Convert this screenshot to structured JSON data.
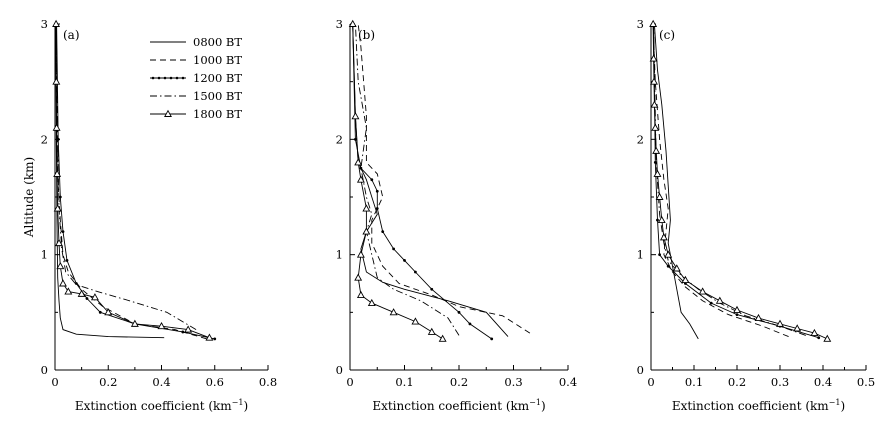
{
  "figure": {
    "ylabel": "Altitude (km)",
    "xlabel": "Extinction coefficient (km",
    "xlabel_sup": "−1",
    "xlabel_close": ")"
  },
  "legend": {
    "entries": [
      {
        "label": "0800 BT",
        "style": "solid"
      },
      {
        "label": "1000 BT",
        "style": "dashed"
      },
      {
        "label": "1200 BT",
        "style": "dotted-line"
      },
      {
        "label": "1500 BT",
        "style": "dash-dot"
      },
      {
        "label": "1800 BT",
        "style": "triangle"
      }
    ]
  },
  "chart_data": [
    {
      "type": "line",
      "panel": "(a)",
      "xlabel": "Extinction coefficient (km−1)",
      "ylabel": "Altitude (km)",
      "xlim": [
        0,
        0.8
      ],
      "ylim": [
        0,
        3
      ],
      "xticks": [
        "0",
        "0.2",
        "0.4",
        "0.6",
        "0.8"
      ],
      "yticks": [
        "0",
        "1",
        "2",
        "3"
      ],
      "series": [
        {
          "name": "0800 BT",
          "points": [
            [
              0.41,
              0.28
            ],
            [
              0.2,
              0.29
            ],
            [
              0.08,
              0.31
            ],
            [
              0.03,
              0.35
            ],
            [
              0.02,
              0.45
            ],
            [
              0.015,
              0.6
            ],
            [
              0.01,
              0.8
            ],
            [
              0.008,
              1.2
            ],
            [
              0.005,
              2.0
            ],
            [
              0.003,
              3.0
            ]
          ]
        },
        {
          "name": "1000 BT",
          "points": [
            [
              0.57,
              0.27
            ],
            [
              0.45,
              0.35
            ],
            [
              0.3,
              0.4
            ],
            [
              0.18,
              0.55
            ],
            [
              0.1,
              0.7
            ],
            [
              0.05,
              0.85
            ],
            [
              0.03,
              1.0
            ],
            [
              0.02,
              1.3
            ],
            [
              0.012,
              1.6
            ],
            [
              0.008,
              2.2
            ],
            [
              0.005,
              3.0
            ]
          ]
        },
        {
          "name": "1200 BT",
          "points": [
            [
              0.6,
              0.27
            ],
            [
              0.48,
              0.33
            ],
            [
              0.3,
              0.4
            ],
            [
              0.17,
              0.5
            ],
            [
              0.12,
              0.62
            ],
            [
              0.08,
              0.75
            ],
            [
              0.045,
              0.95
            ],
            [
              0.03,
              1.2
            ],
            [
              0.02,
              1.5
            ],
            [
              0.012,
              2.0
            ],
            [
              0.006,
              3.0
            ]
          ]
        },
        {
          "name": "1500 BT",
          "points": [
            [
              0.53,
              0.35
            ],
            [
              0.42,
              0.5
            ],
            [
              0.28,
              0.6
            ],
            [
              0.16,
              0.68
            ],
            [
              0.08,
              0.74
            ],
            [
              0.04,
              0.85
            ],
            [
              0.025,
              1.05
            ],
            [
              0.015,
              1.4
            ],
            [
              0.01,
              2.0
            ],
            [
              0.005,
              3.0
            ]
          ]
        },
        {
          "name": "1800 BT",
          "points": [
            [
              0.58,
              0.28
            ],
            [
              0.5,
              0.35
            ],
            [
              0.4,
              0.38
            ],
            [
              0.3,
              0.4
            ],
            [
              0.2,
              0.5
            ],
            [
              0.15,
              0.63
            ],
            [
              0.1,
              0.66
            ],
            [
              0.05,
              0.68
            ],
            [
              0.03,
              0.75
            ],
            [
              0.02,
              0.9
            ],
            [
              0.015,
              1.1
            ],
            [
              0.01,
              1.4
            ],
            [
              0.008,
              1.7
            ],
            [
              0.006,
              2.1
            ],
            [
              0.005,
              2.5
            ],
            [
              0.004,
              3.0
            ]
          ]
        }
      ]
    },
    {
      "type": "line",
      "panel": "(b)",
      "xlabel": "Extinction coefficient (km−1)",
      "xlim": [
        0,
        0.4
      ],
      "ylim": [
        0,
        3
      ],
      "xticks": [
        "0",
        "0.1",
        "0.2",
        "0.3",
        "0.4"
      ],
      "yticks": [
        "0",
        "1",
        "2",
        "3"
      ],
      "series": [
        {
          "name": "0800 BT",
          "points": [
            [
              0.29,
              0.29
            ],
            [
              0.25,
              0.5
            ],
            [
              0.18,
              0.6
            ],
            [
              0.1,
              0.7
            ],
            [
              0.06,
              0.76
            ],
            [
              0.03,
              0.85
            ],
            [
              0.02,
              1.05
            ],
            [
              0.03,
              1.2
            ],
            [
              0.05,
              1.35
            ],
            [
              0.04,
              1.5
            ],
            [
              0.03,
              1.65
            ],
            [
              0.015,
              1.8
            ],
            [
              0.01,
              2.2
            ],
            [
              0.005,
              3.0
            ]
          ]
        },
        {
          "name": "1000 BT",
          "points": [
            [
              0.33,
              0.32
            ],
            [
              0.28,
              0.47
            ],
            [
              0.2,
              0.55
            ],
            [
              0.15,
              0.65
            ],
            [
              0.09,
              0.75
            ],
            [
              0.06,
              0.9
            ],
            [
              0.04,
              1.1
            ],
            [
              0.04,
              1.3
            ],
            [
              0.06,
              1.5
            ],
            [
              0.05,
              1.7
            ],
            [
              0.03,
              1.8
            ],
            [
              0.03,
              2.2
            ],
            [
              0.02,
              2.8
            ],
            [
              0.015,
              3.0
            ]
          ]
        },
        {
          "name": "1200 BT",
          "points": [
            [
              0.26,
              0.27
            ],
            [
              0.22,
              0.4
            ],
            [
              0.2,
              0.5
            ],
            [
              0.15,
              0.7
            ],
            [
              0.12,
              0.85
            ],
            [
              0.1,
              0.95
            ],
            [
              0.08,
              1.05
            ],
            [
              0.06,
              1.2
            ],
            [
              0.05,
              1.4
            ],
            [
              0.05,
              1.55
            ],
            [
              0.04,
              1.65
            ],
            [
              0.02,
              1.75
            ],
            [
              0.01,
              2.0
            ],
            [
              0.005,
              3.0
            ]
          ]
        },
        {
          "name": "1500 BT",
          "points": [
            [
              0.2,
              0.3
            ],
            [
              0.18,
              0.45
            ],
            [
              0.13,
              0.6
            ],
            [
              0.08,
              0.7
            ],
            [
              0.05,
              0.8
            ],
            [
              0.04,
              1.0
            ],
            [
              0.03,
              1.2
            ],
            [
              0.04,
              1.35
            ],
            [
              0.03,
              1.5
            ],
            [
              0.02,
              1.75
            ],
            [
              0.03,
              2.1
            ],
            [
              0.015,
              2.5
            ],
            [
              0.01,
              3.0
            ]
          ]
        },
        {
          "name": "1800 BT",
          "points": [
            [
              0.17,
              0.27
            ],
            [
              0.15,
              0.33
            ],
            [
              0.12,
              0.42
            ],
            [
              0.08,
              0.5
            ],
            [
              0.04,
              0.58
            ],
            [
              0.02,
              0.65
            ],
            [
              0.015,
              0.8
            ],
            [
              0.02,
              1.0
            ],
            [
              0.03,
              1.2
            ],
            [
              0.03,
              1.4
            ],
            [
              0.02,
              1.65
            ],
            [
              0.015,
              1.8
            ],
            [
              0.01,
              2.2
            ],
            [
              0.005,
              3.0
            ]
          ]
        }
      ]
    },
    {
      "type": "line",
      "panel": "(c)",
      "xlabel": "Extinction coefficient (km−1)",
      "xlim": [
        0,
        0.5
      ],
      "ylim": [
        0,
        3
      ],
      "xticks": [
        "0",
        "0.1",
        "0.2",
        "0.3",
        "0.4",
        "0.5"
      ],
      "yticks": [
        "0",
        "1",
        "2",
        "3"
      ],
      "series": [
        {
          "name": "0800 BT",
          "points": [
            [
              0.11,
              0.27
            ],
            [
              0.09,
              0.4
            ],
            [
              0.07,
              0.5
            ],
            [
              0.06,
              0.7
            ],
            [
              0.05,
              0.9
            ],
            [
              0.04,
              1.1
            ],
            [
              0.045,
              1.3
            ],
            [
              0.04,
              1.6
            ],
            [
              0.035,
              1.9
            ],
            [
              0.03,
              2.1
            ],
            [
              0.025,
              2.3
            ],
            [
              0.015,
              2.6
            ],
            [
              0.008,
              3.0
            ]
          ]
        },
        {
          "name": "1000 BT",
          "points": [
            [
              0.32,
              0.29
            ],
            [
              0.26,
              0.38
            ],
            [
              0.18,
              0.48
            ],
            [
              0.12,
              0.6
            ],
            [
              0.08,
              0.72
            ],
            [
              0.05,
              0.85
            ],
            [
              0.03,
              1.0
            ],
            [
              0.035,
              1.2
            ],
            [
              0.04,
              1.4
            ],
            [
              0.03,
              1.65
            ],
            [
              0.02,
              2.0
            ],
            [
              0.01,
              2.5
            ],
            [
              0.005,
              3.0
            ]
          ]
        },
        {
          "name": "1200 BT",
          "points": [
            [
              0.39,
              0.28
            ],
            [
              0.3,
              0.38
            ],
            [
              0.2,
              0.48
            ],
            [
              0.14,
              0.58
            ],
            [
              0.08,
              0.75
            ],
            [
              0.04,
              0.9
            ],
            [
              0.02,
              1.0
            ],
            [
              0.015,
              1.3
            ],
            [
              0.01,
              1.8
            ],
            [
              0.006,
              3.0
            ]
          ]
        },
        {
          "name": "1500 BT",
          "points": [
            [
              0.36,
              0.3
            ],
            [
              0.3,
              0.38
            ],
            [
              0.22,
              0.47
            ],
            [
              0.16,
              0.58
            ],
            [
              0.11,
              0.7
            ],
            [
              0.07,
              0.82
            ],
            [
              0.04,
              0.95
            ],
            [
              0.03,
              1.1
            ],
            [
              0.02,
              1.35
            ],
            [
              0.012,
              1.8
            ],
            [
              0.006,
              3.0
            ]
          ]
        },
        {
          "name": "1800 BT",
          "points": [
            [
              0.41,
              0.27
            ],
            [
              0.38,
              0.32
            ],
            [
              0.34,
              0.36
            ],
            [
              0.3,
              0.4
            ],
            [
              0.25,
              0.45
            ],
            [
              0.2,
              0.52
            ],
            [
              0.16,
              0.6
            ],
            [
              0.12,
              0.68
            ],
            [
              0.08,
              0.78
            ],
            [
              0.06,
              0.88
            ],
            [
              0.04,
              1.0
            ],
            [
              0.03,
              1.15
            ],
            [
              0.025,
              1.3
            ],
            [
              0.02,
              1.5
            ],
            [
              0.015,
              1.7
            ],
            [
              0.012,
              1.9
            ],
            [
              0.01,
              2.1
            ],
            [
              0.008,
              2.3
            ],
            [
              0.007,
              2.5
            ],
            [
              0.006,
              2.7
            ],
            [
              0.005,
              3.0
            ]
          ]
        }
      ]
    }
  ]
}
